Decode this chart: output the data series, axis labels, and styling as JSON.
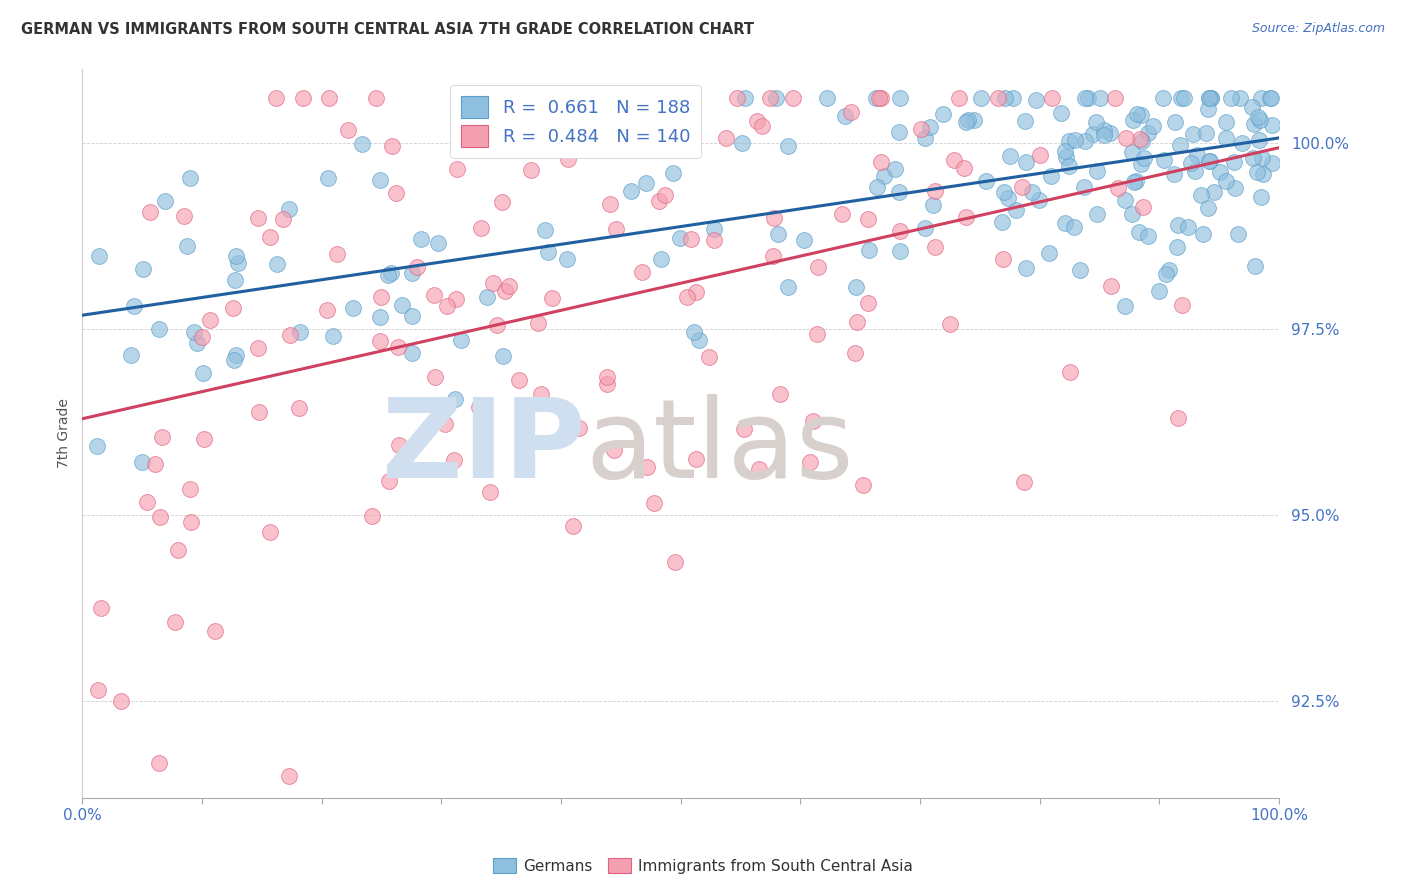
{
  "title": "GERMAN VS IMMIGRANTS FROM SOUTH CENTRAL ASIA 7TH GRADE CORRELATION CHART",
  "source": "Source: ZipAtlas.com",
  "ylabel": "7th Grade",
  "legend_blue_r": "0.661",
  "legend_blue_n": "188",
  "legend_pink_r": "0.484",
  "legend_pink_n": "140",
  "legend_blue_label": "Germans",
  "legend_pink_label": "Immigrants from South Central Asia",
  "background_color": "#ffffff",
  "blue_color": "#8fbfde",
  "pink_color": "#f5a0b0",
  "blue_edge_color": "#5a9ec9",
  "pink_edge_color": "#e06080",
  "blue_line_color": "#2060a0",
  "pink_line_color": "#d04060",
  "watermark_zip_color": "#d0dff0",
  "watermark_atlas_color": "#d8d0cc",
  "blue_R": 0.661,
  "blue_N": 188,
  "pink_R": 0.484,
  "pink_N": 140,
  "xmin": 0.0,
  "xmax": 1.0,
  "ymin": 91.2,
  "ymax": 101.0,
  "ytick_vals": [
    92.5,
    95.0,
    97.5,
    100.0
  ],
  "ytick_color": "#4472c4",
  "xtick_color": "#4472c4",
  "source_color": "#4472c4"
}
